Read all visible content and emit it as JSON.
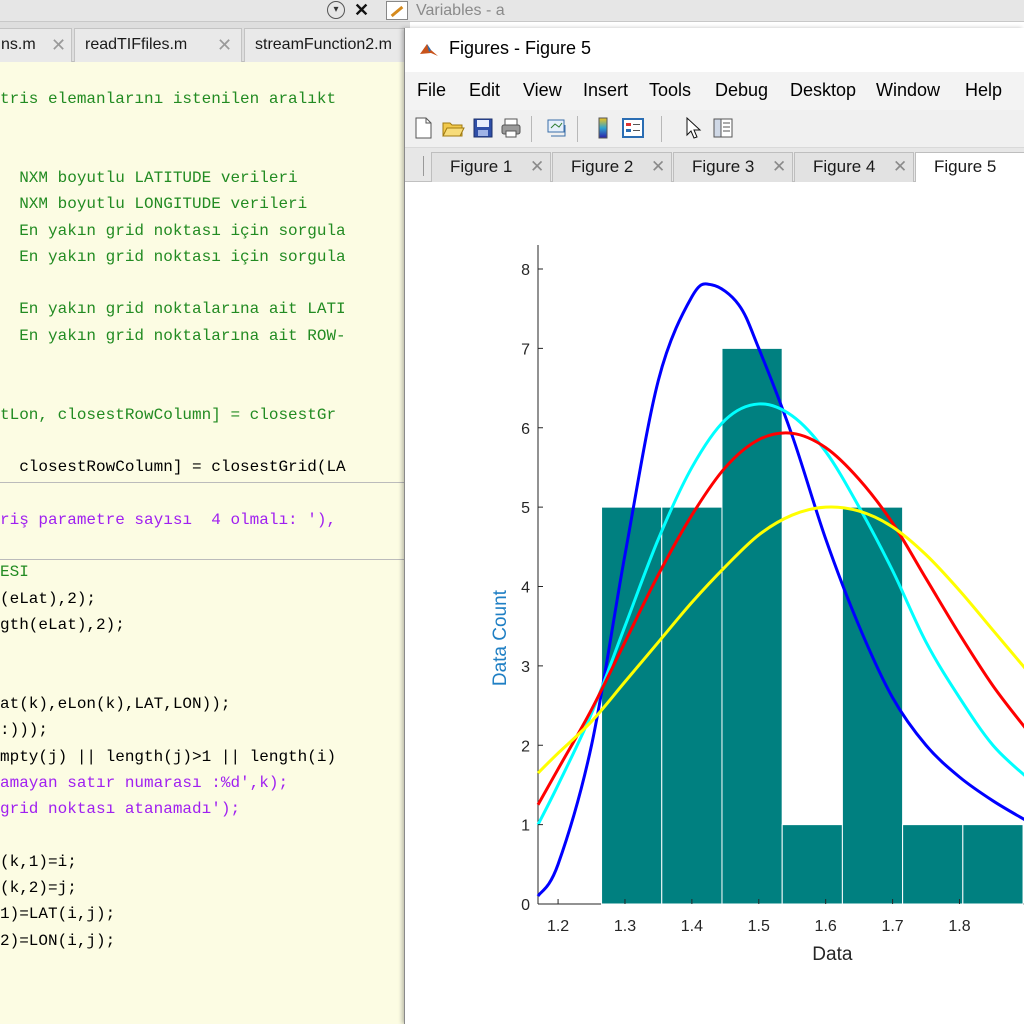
{
  "topbar": {
    "variables_title": "Variables - a",
    "close_glyph": "✕"
  },
  "editor": {
    "tabs": [
      {
        "label": "ns.m"
      },
      {
        "label": "readTIFfiles.m"
      },
      {
        "label": "streamFunction2.m"
      }
    ],
    "lines": [
      {
        "text": "tris elemanlarını istenilen aralıkt",
        "type": "comment"
      },
      {
        "text": "",
        "type": "blank"
      },
      {
        "text": "",
        "type": "blank"
      },
      {
        "text": "  NXM boyutlu LATITUDE verileri",
        "type": "comment"
      },
      {
        "text": "  NXM boyutlu LONGITUDE verileri",
        "type": "comment"
      },
      {
        "text": "  En yakın grid noktası için sorgula",
        "type": "comment"
      },
      {
        "text": "  En yakın grid noktası için sorgula",
        "type": "comment"
      },
      {
        "text": "",
        "type": "blank"
      },
      {
        "text": "  En yakın grid noktalarına ait LATI",
        "type": "comment"
      },
      {
        "text": "  En yakın grid noktalarına ait ROW-",
        "type": "comment"
      },
      {
        "text": "",
        "type": "blank"
      },
      {
        "text": "",
        "type": "blank"
      },
      {
        "text": "tLon, closestRowColumn] = closestGr",
        "type": "comment"
      },
      {
        "text": "",
        "type": "blank"
      },
      {
        "text": "  closestRowColumn] = closestGrid(LA",
        "type": "code"
      },
      {
        "text": "",
        "type": "blank"
      },
      {
        "text": "riş parametre sayısı  4 olmalı: '),",
        "type": "string"
      },
      {
        "text": "",
        "type": "blank"
      },
      {
        "text": "ESI",
        "type": "comment"
      },
      {
        "text": "(eLat),2);",
        "type": "code"
      },
      {
        "text": "gth(eLat),2);",
        "type": "code"
      },
      {
        "text": "",
        "type": "blank"
      },
      {
        "text": "",
        "type": "blank"
      },
      {
        "text": "at(k),eLon(k),LAT,LON));",
        "type": "code"
      },
      {
        "text": ":)));",
        "type": "code"
      },
      {
        "text": "mpty(j) || length(j)>1 || length(i)",
        "type": "code"
      },
      {
        "text": "amayan satır numarası :%d',k);",
        "type": "string"
      },
      {
        "text": "grid noktası atanamadı');",
        "type": "string"
      },
      {
        "text": "",
        "type": "blank"
      },
      {
        "text": "(k,1)=i;",
        "type": "code"
      },
      {
        "text": "(k,2)=j;",
        "type": "code"
      },
      {
        "text": "1)=LAT(i,j);",
        "type": "code"
      },
      {
        "text": "2)=LON(i,j);",
        "type": "code"
      }
    ],
    "colors": {
      "background": "#fcfce3",
      "comment": "#228b22",
      "string": "#a020f0"
    }
  },
  "figure_window": {
    "title": "Figures - Figure 5",
    "menu": [
      "File",
      "Edit",
      "View",
      "Insert",
      "Tools",
      "Debug",
      "Desktop",
      "Window",
      "Help"
    ],
    "toolbar": [
      "new-figure-icon",
      "open-file-icon",
      "save-icon",
      "print-icon",
      "link-plot-icon",
      "colorbar-icon",
      "legend-icon",
      "pointer-icon",
      "property-inspector-icon"
    ],
    "tabs": [
      {
        "label": "Figure 1",
        "active": false
      },
      {
        "label": "Figure 2",
        "active": false
      },
      {
        "label": "Figure 3",
        "active": false
      },
      {
        "label": "Figure 4",
        "active": false
      },
      {
        "label": "Figure 5",
        "active": true
      }
    ],
    "tab_close_glyph": "✕"
  },
  "chart_data": {
    "type": "bar",
    "title": "",
    "xlabel": "Data",
    "ylabel": "Data Count",
    "xlim": [
      1.17,
      1.9
    ],
    "ylim": [
      0,
      8
    ],
    "xticks": [
      "1.2",
      "1.3",
      "1.4",
      "1.5",
      "1.6",
      "1.7",
      "1.8"
    ],
    "xtick_values": [
      1.2,
      1.3,
      1.4,
      1.5,
      1.6,
      1.7,
      1.8
    ],
    "yticks": [
      "0",
      "1",
      "2",
      "3",
      "4",
      "5",
      "6",
      "7",
      "8"
    ],
    "ytick_values": [
      0,
      1,
      2,
      3,
      4,
      5,
      6,
      7,
      8
    ],
    "bar_color": "#008080",
    "bins": [
      {
        "x0": 1.265,
        "x1": 1.355,
        "count": 5
      },
      {
        "x0": 1.355,
        "x1": 1.445,
        "count": 5
      },
      {
        "x0": 1.445,
        "x1": 1.535,
        "count": 7
      },
      {
        "x0": 1.535,
        "x1": 1.625,
        "count": 1
      },
      {
        "x0": 1.625,
        "x1": 1.715,
        "count": 5
      },
      {
        "x0": 1.715,
        "x1": 1.805,
        "count": 1
      },
      {
        "x0": 1.805,
        "x1": 1.895,
        "count": 1
      }
    ],
    "series": [
      {
        "color": "#0000ff",
        "x": [
          1.17,
          1.2,
          1.25,
          1.3,
          1.35,
          1.4,
          1.43,
          1.47,
          1.5,
          1.55,
          1.6,
          1.65,
          1.7,
          1.75,
          1.8,
          1.85,
          1.9
        ],
        "y": [
          0.1,
          0.5,
          2.0,
          4.4,
          6.6,
          7.65,
          7.8,
          7.55,
          7.0,
          5.9,
          4.6,
          3.5,
          2.6,
          2.0,
          1.6,
          1.3,
          1.05
        ]
      },
      {
        "color": "#00ffff",
        "x": [
          1.17,
          1.2,
          1.25,
          1.3,
          1.35,
          1.4,
          1.45,
          1.5,
          1.55,
          1.6,
          1.65,
          1.7,
          1.75,
          1.8,
          1.85,
          1.9
        ],
        "y": [
          1.0,
          1.5,
          2.4,
          3.5,
          4.6,
          5.5,
          6.1,
          6.3,
          6.15,
          5.7,
          5.0,
          4.2,
          3.3,
          2.6,
          2.0,
          1.6
        ]
      },
      {
        "color": "#ff0000",
        "x": [
          1.17,
          1.2,
          1.25,
          1.3,
          1.35,
          1.4,
          1.45,
          1.5,
          1.55,
          1.6,
          1.65,
          1.7,
          1.75,
          1.8,
          1.85,
          1.9
        ],
        "y": [
          1.25,
          1.7,
          2.45,
          3.3,
          4.15,
          4.9,
          5.5,
          5.85,
          5.93,
          5.75,
          5.35,
          4.8,
          4.1,
          3.4,
          2.75,
          2.2
        ]
      },
      {
        "color": "#ffff00",
        "x": [
          1.17,
          1.2,
          1.25,
          1.3,
          1.35,
          1.4,
          1.45,
          1.5,
          1.55,
          1.6,
          1.65,
          1.7,
          1.75,
          1.8,
          1.85,
          1.9
        ],
        "y": [
          1.65,
          1.9,
          2.3,
          2.8,
          3.3,
          3.8,
          4.25,
          4.65,
          4.9,
          5.0,
          4.95,
          4.75,
          4.4,
          3.95,
          3.45,
          2.95
        ]
      }
    ],
    "grid": false,
    "legend": "none"
  }
}
